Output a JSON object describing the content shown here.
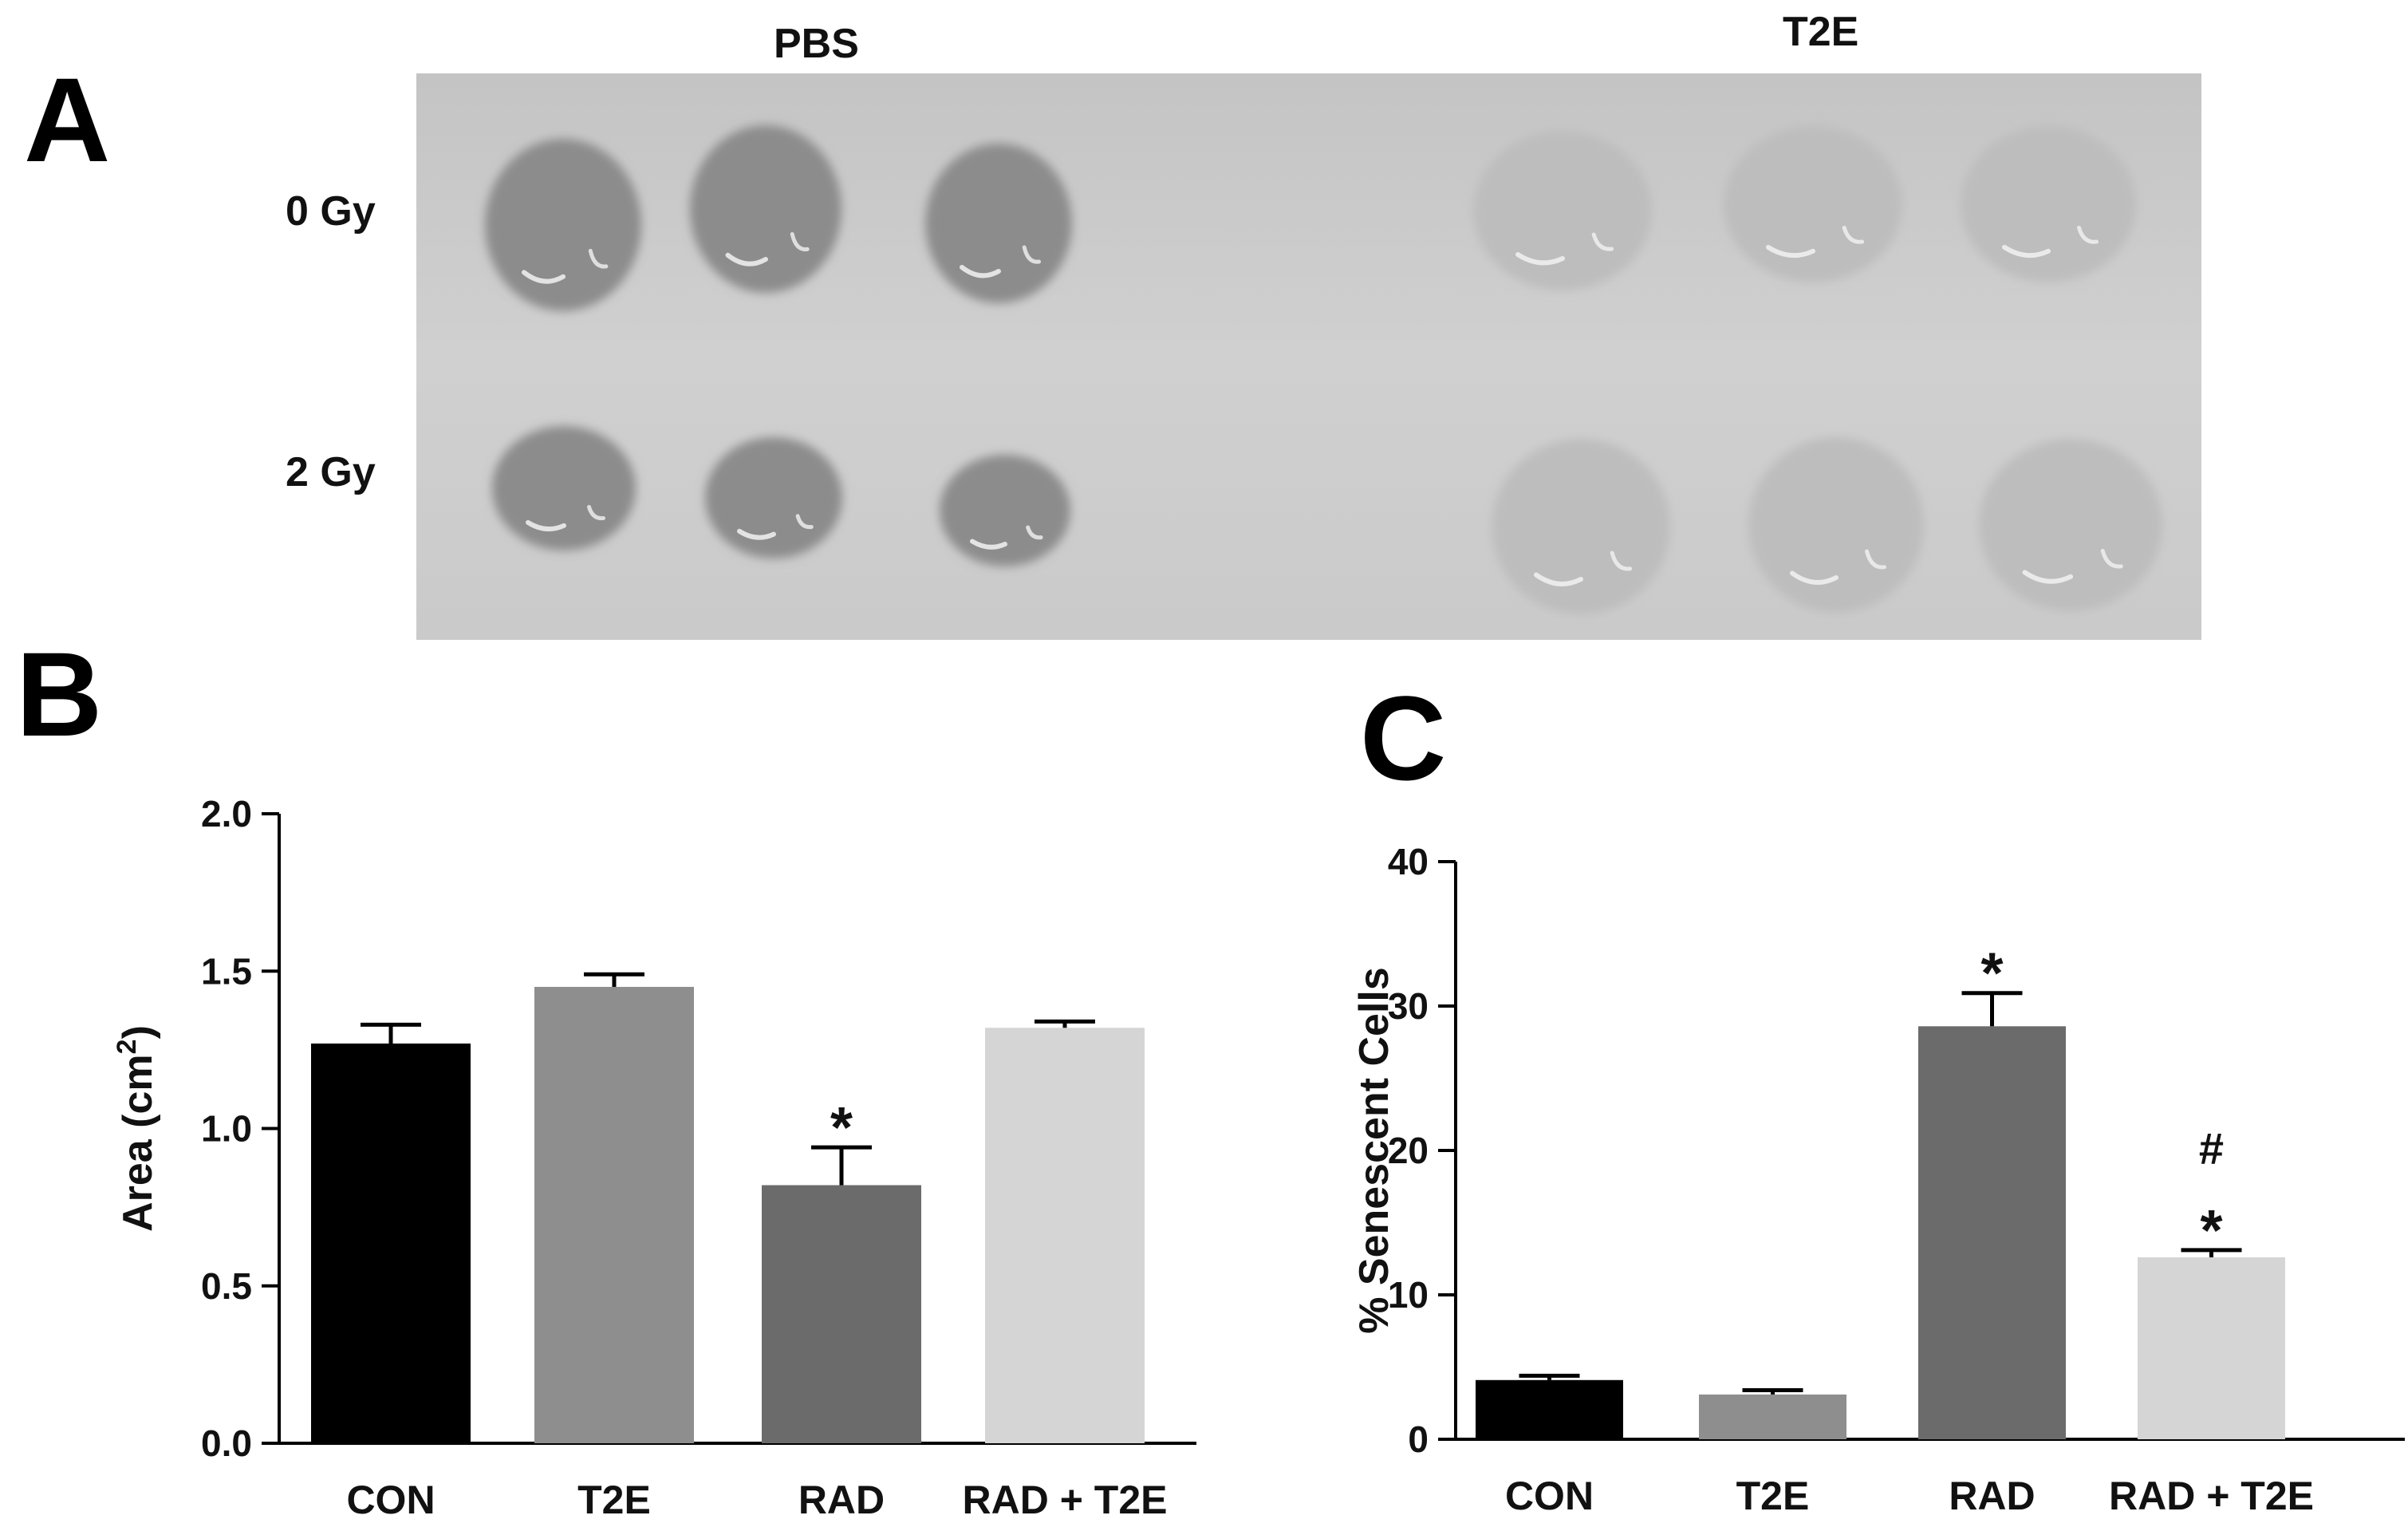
{
  "panel_labels": {
    "a": "A",
    "b": "B",
    "c": "C"
  },
  "photo": {
    "columns": [
      "PBS",
      "T2E"
    ],
    "rows": [
      "0 Gy",
      "2 Gy"
    ],
    "colors": {
      "background": "#c9c9c9",
      "pbs_gel": "#8c8c8c",
      "t2e_gel": "#bdbdbd",
      "highlight": "#f2f2f2"
    }
  },
  "chart_data": [
    {
      "type": "bar",
      "panel": "B",
      "categories": [
        "CON",
        "T2E",
        "RAD",
        "RAD + T2E"
      ],
      "values": [
        1.27,
        1.45,
        0.82,
        1.32
      ],
      "errors": [
        0.06,
        0.04,
        0.12,
        0.02
      ],
      "colors": [
        "#000000",
        "#8e8e8e",
        "#6b6b6b",
        "#d5d5d5"
      ],
      "annotations": [
        {
          "category": "RAD",
          "text": "*"
        }
      ],
      "ylabel": "Area (cm²)",
      "ylabel_main": "Area (cm",
      "ylabel_sup": "2",
      "ylabel_end": ")",
      "ylim": [
        0,
        2.0
      ],
      "yticks": [
        "0.0",
        "0.5",
        "1.0",
        "1.5",
        "2.0"
      ]
    },
    {
      "type": "bar",
      "panel": "C",
      "categories": [
        "CON",
        "T2E",
        "RAD",
        "RAD + T2E"
      ],
      "values": [
        4.1,
        3.1,
        28.6,
        12.6
      ],
      "errors": [
        0.3,
        0.3,
        2.3,
        0.5
      ],
      "colors": [
        "#000000",
        "#8e8e8e",
        "#6b6b6b",
        "#d5d5d5"
      ],
      "annotations": [
        {
          "category": "RAD",
          "text": "*"
        },
        {
          "category": "RAD + T2E",
          "text": "#"
        },
        {
          "category": "RAD + T2E",
          "text": "*"
        }
      ],
      "ylabel": "% Senescent Cells",
      "ylim": [
        0,
        40
      ],
      "yticks": [
        "0",
        "10",
        "20",
        "30",
        "40"
      ]
    }
  ]
}
